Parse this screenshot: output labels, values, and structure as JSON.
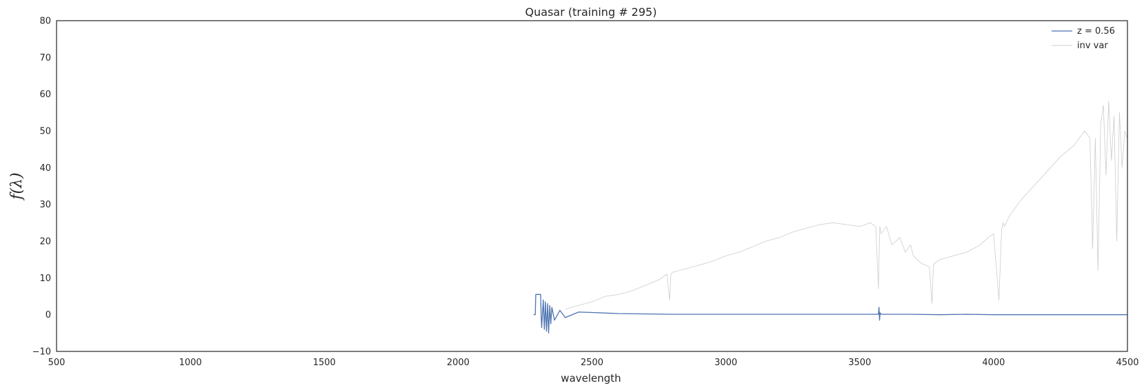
{
  "chart_data": {
    "type": "line",
    "title": "Quasar (training # 295)",
    "xlabel": "wavelength",
    "ylabel": "f(λ)",
    "xlim": [
      500,
      4500
    ],
    "ylim": [
      -10,
      80
    ],
    "xticks": [
      "500",
      "1000",
      "1500",
      "2000",
      "2500",
      "3000",
      "3500",
      "4000",
      "4500"
    ],
    "yticks": [
      "−10",
      "0",
      "10",
      "20",
      "30",
      "40",
      "50",
      "60",
      "70",
      "80"
    ],
    "grid": false,
    "legend_position": "top-right",
    "series": [
      {
        "name": "z = 0.56",
        "color": "#4c72b0",
        "x": [
          2282,
          2288,
          2290,
          2308,
          2310,
          2312,
          2318,
          2322,
          2326,
          2330,
          2334,
          2338,
          2342,
          2346,
          2350,
          2360,
          2380,
          2400,
          2450,
          2500,
          2600,
          2700,
          2800,
          2900,
          3000,
          3100,
          3200,
          3300,
          3400,
          3500,
          3570,
          3572,
          3574,
          3576,
          3580,
          3600,
          3700,
          3800,
          3900,
          4000,
          4100,
          4200,
          4300,
          4400,
          4500
        ],
        "y": [
          0,
          0,
          5.5,
          5.5,
          0,
          -3.5,
          4,
          -4,
          3.5,
          -4.5,
          3,
          -5,
          2.5,
          -2.5,
          2,
          -1.5,
          1.2,
          -0.8,
          0.7,
          0.6,
          0.3,
          0.2,
          0.1,
          0.1,
          0.1,
          0.1,
          0.1,
          0.1,
          0.1,
          0.1,
          0.1,
          2,
          -1.5,
          0.5,
          0.1,
          0.1,
          0.1,
          0,
          0.1,
          0,
          0,
          0,
          0,
          0,
          0
        ]
      },
      {
        "name": "inv var",
        "color": "#cccccc",
        "x": [
          2400,
          2450,
          2500,
          2550,
          2600,
          2650,
          2700,
          2750,
          2780,
          2790,
          2795,
          2800,
          2850,
          2900,
          2950,
          3000,
          3050,
          3100,
          3150,
          3200,
          3250,
          3300,
          3350,
          3400,
          3450,
          3500,
          3540,
          3560,
          3570,
          3575,
          3580,
          3600,
          3620,
          3650,
          3670,
          3690,
          3700,
          3730,
          3760,
          3770,
          3775,
          3780,
          3800,
          3850,
          3900,
          3950,
          3980,
          4000,
          4020,
          4030,
          4035,
          4040,
          4060,
          4100,
          4150,
          4200,
          4250,
          4300,
          4340,
          4360,
          4370,
          4380,
          4390,
          4400,
          4410,
          4420,
          4430,
          4440,
          4450,
          4460,
          4470,
          4480,
          4490,
          4500
        ],
        "y": [
          1.5,
          2.5,
          3.5,
          5,
          5.5,
          6.5,
          8,
          9.5,
          11,
          4,
          11,
          11.5,
          12.5,
          13.5,
          14.5,
          16,
          17,
          18.5,
          20,
          21,
          22.5,
          23.5,
          24.5,
          25,
          24.5,
          24,
          25,
          24,
          7,
          24,
          22,
          24,
          19,
          21,
          17,
          19,
          16,
          14,
          13,
          3,
          13.5,
          14,
          15,
          16,
          17,
          19,
          21,
          22,
          4,
          23,
          25,
          24,
          27,
          31,
          35,
          39,
          43,
          46,
          50,
          48,
          18,
          48,
          12,
          52,
          57,
          38,
          58,
          42,
          54,
          20,
          55,
          40,
          50,
          48
        ]
      }
    ]
  }
}
